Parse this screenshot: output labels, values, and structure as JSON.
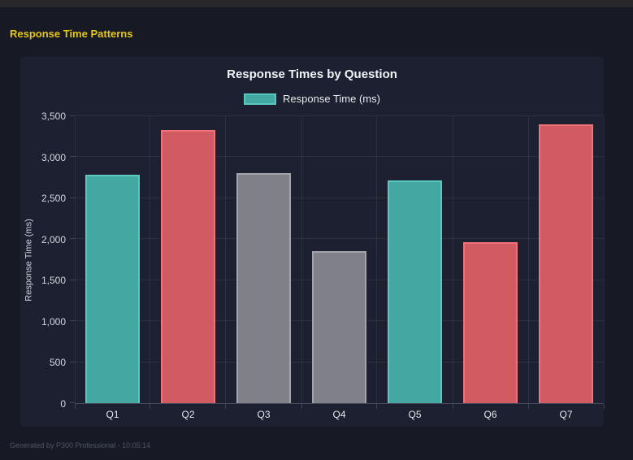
{
  "header": {
    "title": "Response Time Patterns"
  },
  "footer": {
    "text": "Generated by P300 Professional - 10:05:14"
  },
  "colors": {
    "page_bg": "#171a25",
    "panel_bg": "#1c2030",
    "topbar_bg": "#28282b",
    "header_text": "#e5c518",
    "grid": "rgba(255,255,255,0.07)",
    "teal_fill": "#42a8a1",
    "teal_border": "#5bc8bf",
    "red_fill": "#d05b63",
    "red_border": "#f07278",
    "gray_fill": "#808089",
    "gray_border": "#a2a3ab"
  },
  "chart_data": {
    "type": "bar",
    "title": "Response Times by Question",
    "categories": [
      "Q1",
      "Q2",
      "Q3",
      "Q4",
      "Q5",
      "Q6",
      "Q7"
    ],
    "values": [
      2790,
      3330,
      2810,
      1850,
      2720,
      1960,
      3400
    ],
    "xlabel": "",
    "ylabel": "Response Time (ms)",
    "ylim": [
      0,
      3500
    ],
    "ytick_labels": [
      "0",
      "500",
      "1,000",
      "1,500",
      "2,000",
      "2,500",
      "3,000",
      "3,500"
    ],
    "grid": true,
    "legend_position": "top",
    "legend": [
      {
        "label": "Response Time (ms)",
        "fill": "#42a8a1",
        "border": "#5bc8bf"
      }
    ],
    "bar_colors": [
      {
        "fill": "#42a8a1",
        "border": "#5bc8bf"
      },
      {
        "fill": "#d05b63",
        "border": "#f07278"
      },
      {
        "fill": "#808089",
        "border": "#a2a3ab"
      },
      {
        "fill": "#808089",
        "border": "#a2a3ab"
      },
      {
        "fill": "#42a8a1",
        "border": "#5bc8bf"
      },
      {
        "fill": "#d05b63",
        "border": "#f07278"
      },
      {
        "fill": "#d05b63",
        "border": "#f07278"
      }
    ]
  }
}
